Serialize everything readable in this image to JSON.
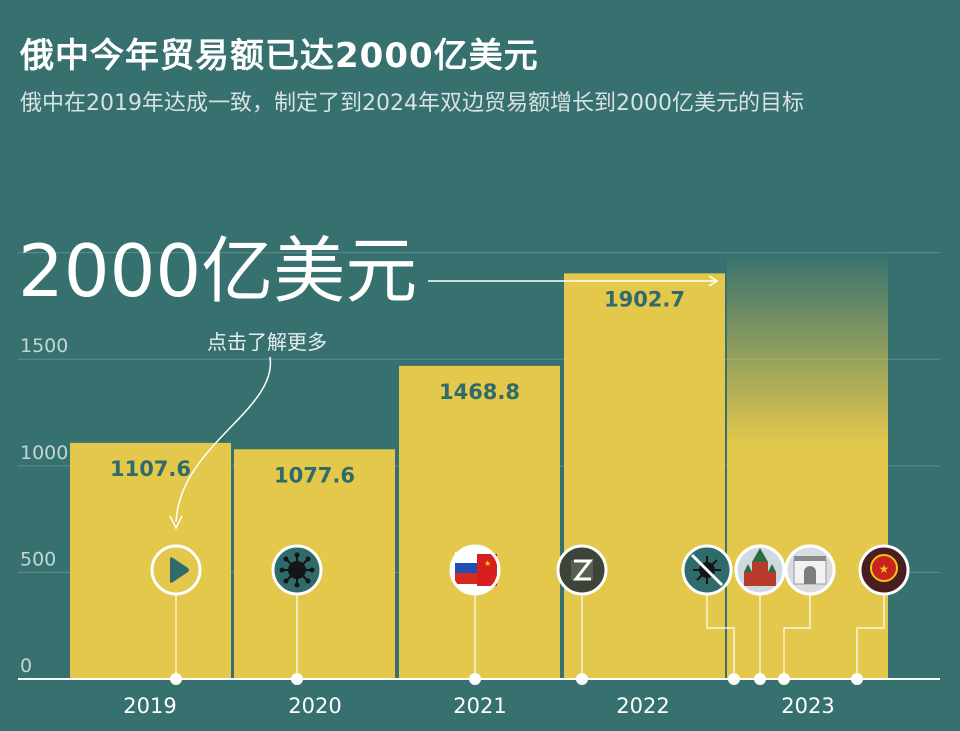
{
  "header": {
    "title": "俄中今年贸易额已达2000亿美元",
    "subtitle": "俄中在2019年达成一致，制定了到2024年双边贸易额增长到2000亿美元的目标"
  },
  "annotation": {
    "target_label": "2000亿美元",
    "hint": "点击了解更多"
  },
  "colors": {
    "background": "#367170",
    "bar": "#e3c84c",
    "value_label": "#2f6b6b",
    "text": "#ffffff",
    "grid": "#5f8f8e"
  },
  "chart_data": {
    "type": "bar",
    "title": "俄中今年贸易额已达2000亿美元",
    "xlabel": "",
    "ylabel": "",
    "categories": [
      "2019",
      "2020",
      "2021",
      "2022",
      "2023"
    ],
    "values": [
      1107.6,
      1077.6,
      1468.8,
      1902.7,
      2000
    ],
    "value_labels": [
      "1107.6",
      "1077.6",
      "1468.8",
      "1902.7",
      ""
    ],
    "y_ticks": [
      0,
      500,
      1000,
      1500
    ],
    "ylim": [
      0,
      2200
    ],
    "target_line": 2000,
    "grid": true
  },
  "events": [
    {
      "name": "play",
      "icon": "play-icon"
    },
    {
      "name": "covid",
      "icon": "virus-icon"
    },
    {
      "name": "russia-china-flags",
      "icon": "flags-icon"
    },
    {
      "name": "z-symbol",
      "icon": "z-symbol-icon"
    },
    {
      "name": "covid-ended",
      "icon": "virus-crossed-icon"
    },
    {
      "name": "kremlin",
      "icon": "kremlin-icon"
    },
    {
      "name": "tsinghua-gate",
      "icon": "gate-icon"
    },
    {
      "name": "china-emblem",
      "icon": "emblem-icon"
    }
  ]
}
